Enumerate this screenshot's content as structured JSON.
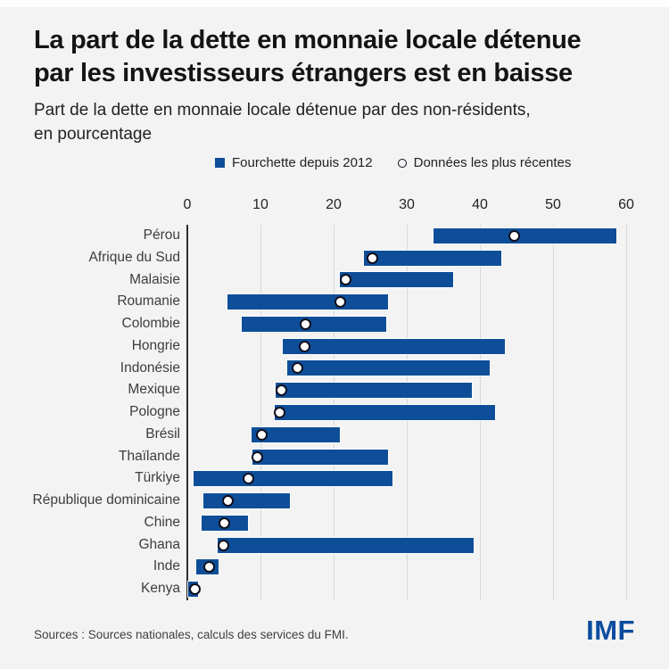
{
  "header": {
    "title_line1": "La part de la dette en monnaie locale détenue",
    "title_line2": "par les investisseurs étrangers est en baisse",
    "subtitle_line1": "Part de la dette en monnaie locale détenue par des non-résidents,",
    "subtitle_line2": "en pourcentage"
  },
  "legend": {
    "range_label": "Fourchette depuis 2012",
    "recent_label": "Données les plus récentes"
  },
  "chart_data": {
    "type": "bar",
    "subtype": "horizontal-range-bar-with-point-markers",
    "title": "Part de la dette en monnaie locale détenue par des non-résidents, en pourcentage",
    "xlabel": "",
    "ylabel": "",
    "xlim": [
      0,
      60
    ],
    "x_ticks": [
      0,
      10,
      20,
      30,
      40,
      50,
      60
    ],
    "grid": "vertical",
    "legend_position": "top",
    "series": [
      {
        "name": "Fourchette depuis 2012",
        "marker": "bar-range"
      },
      {
        "name": "Données les plus récentes",
        "marker": "open-circle"
      }
    ],
    "rows": [
      {
        "label": "Pérou",
        "range": [
          33.7,
          58.6
        ],
        "recent": 44.7
      },
      {
        "label": "Afrique du Sud",
        "range": [
          24.2,
          42.9
        ],
        "recent": 25.3
      },
      {
        "label": "Malaisie",
        "range": [
          20.9,
          36.4
        ],
        "recent": 21.6
      },
      {
        "label": "Roumanie",
        "range": [
          5.5,
          27.5
        ],
        "recent": 20.9
      },
      {
        "label": "Colombie",
        "range": [
          7.4,
          27.2
        ],
        "recent": 16.2
      },
      {
        "label": "Hongrie",
        "range": [
          13.0,
          43.4
        ],
        "recent": 16.0
      },
      {
        "label": "Indonésie",
        "range": [
          13.7,
          41.4
        ],
        "recent": 15.1
      },
      {
        "label": "Mexique",
        "range": [
          12.1,
          38.9
        ],
        "recent": 12.9
      },
      {
        "label": "Pologne",
        "range": [
          11.9,
          42.1
        ],
        "recent": 12.6
      },
      {
        "label": "Brésil",
        "range": [
          8.8,
          20.9
        ],
        "recent": 10.2
      },
      {
        "label": "Thaïlande",
        "range": [
          8.9,
          27.4
        ],
        "recent": 9.6
      },
      {
        "label": "Türkiye",
        "range": [
          0.9,
          28.0
        ],
        "recent": 8.4
      },
      {
        "label": "République dominicaine",
        "range": [
          2.2,
          14.0
        ],
        "recent": 5.6
      },
      {
        "label": "Chine",
        "range": [
          2.0,
          8.3
        ],
        "recent": 5.1
      },
      {
        "label": "Ghana",
        "range": [
          4.1,
          39.1
        ],
        "recent": 4.9
      },
      {
        "label": "Inde",
        "range": [
          1.2,
          4.3
        ],
        "recent": 3.0
      },
      {
        "label": "Kenya",
        "range": [
          0.1,
          1.5
        ],
        "recent": 1.0
      }
    ]
  },
  "footer": {
    "sources": "Sources : Sources nationales, calculs des services du FMI.",
    "logo": "IMF"
  },
  "colors": {
    "bar_blue": "#0e4e98",
    "logo_blue": "#0c4c9e",
    "background": "#f2f3f2",
    "title_text": "#141414",
    "body_text": "#222222",
    "label_text": "#3d3d3d",
    "gridline": "#d9d9d9",
    "axis_line": "#2e2e2e",
    "marker_fill": "#ffffff",
    "marker_stroke": "#10101f"
  }
}
